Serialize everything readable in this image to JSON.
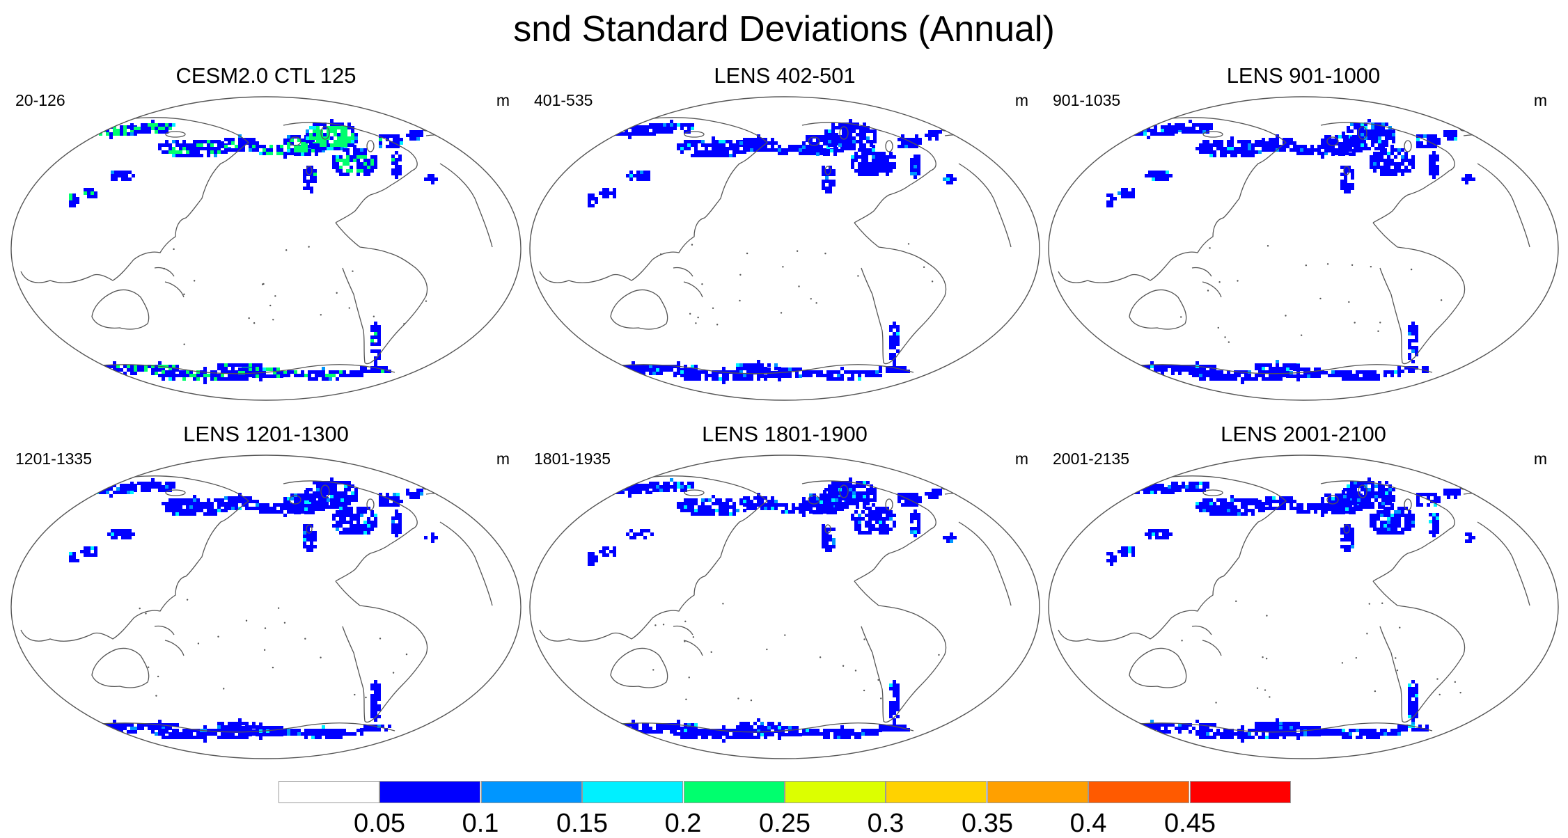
{
  "title": "snd Standard Deviations (Annual)",
  "panels": [
    {
      "title": "CESM2.0 CTL 125",
      "range": "20-126",
      "unit": "m",
      "intensity": 1.0
    },
    {
      "title": "LENS 402-501",
      "range": "401-535",
      "unit": "m",
      "intensity": 0.45
    },
    {
      "title": "LENS 901-1000",
      "range": "901-1035",
      "unit": "m",
      "intensity": 0.42
    },
    {
      "title": "LENS 1201-1300",
      "range": "1201-1335",
      "unit": "m",
      "intensity": 0.5
    },
    {
      "title": "LENS 1801-1900",
      "range": "1801-1935",
      "unit": "m",
      "intensity": 0.5
    },
    {
      "title": "LENS 2001-2100",
      "range": "2001-2135",
      "unit": "m",
      "intensity": 0.55
    }
  ],
  "colorbar": {
    "labels": [
      "0.05",
      "0.1",
      "0.15",
      "0.2",
      "0.25",
      "0.3",
      "0.35",
      "0.4",
      "0.45"
    ],
    "colors": [
      "#ffffff",
      "#0000ff",
      "#0096ff",
      "#00f0ff",
      "#00ff6e",
      "#dcff00",
      "#ffd200",
      "#ffa000",
      "#ff5a00",
      "#ff0000"
    ]
  }
}
